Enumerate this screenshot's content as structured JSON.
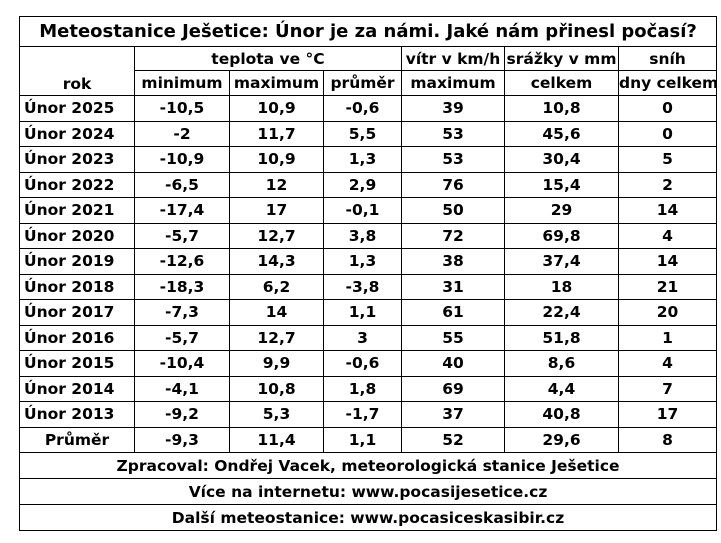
{
  "title": "Meteostanice Ješetice: Únor je za námi. Jaké nám přinesl počasí?",
  "header": {
    "rok_label": "rok",
    "teplota_group": "teplota ve °C",
    "vitr_group": "vítr v km/h",
    "srazky_group": "srážky v mm",
    "snih_group": "sníh",
    "col_minimum": "minimum",
    "col_maximum": "maximum",
    "col_prumer": "průměr",
    "col_vitr_maximum": "maximum",
    "col_srazky_celkem": "celkem",
    "col_snih_dny": "dny celkem"
  },
  "rows": [
    {
      "rok": "Únor 2025",
      "min": "-10,5",
      "max": "10,9",
      "avg": "-0,6",
      "vitr": "39",
      "srazky": "10,8",
      "snih": "0"
    },
    {
      "rok": "Únor 2024",
      "min": "-2",
      "max": "11,7",
      "avg": "5,5",
      "vitr": "53",
      "srazky": "45,6",
      "snih": "0"
    },
    {
      "rok": "Únor 2023",
      "min": "-10,9",
      "max": "10,9",
      "avg": "1,3",
      "vitr": "53",
      "srazky": "30,4",
      "snih": "5"
    },
    {
      "rok": "Únor 2022",
      "min": "-6,5",
      "max": "12",
      "avg": "2,9",
      "vitr": "76",
      "srazky": "15,4",
      "snih": "2"
    },
    {
      "rok": "Únor 2021",
      "min": "-17,4",
      "max": "17",
      "avg": "-0,1",
      "vitr": "50",
      "srazky": "29",
      "snih": "14"
    },
    {
      "rok": "Únor 2020",
      "min": "-5,7",
      "max": "12,7",
      "avg": "3,8",
      "vitr": "72",
      "srazky": "69,8",
      "snih": "4"
    },
    {
      "rok": "Únor 2019",
      "min": "-12,6",
      "max": "14,3",
      "avg": "1,3",
      "vitr": "38",
      "srazky": "37,4",
      "snih": "14"
    },
    {
      "rok": "Únor 2018",
      "min": "-18,3",
      "max": "6,2",
      "avg": "-3,8",
      "vitr": "31",
      "srazky": "18",
      "snih": "21"
    },
    {
      "rok": "Únor 2017",
      "min": "-7,3",
      "max": "14",
      "avg": "1,1",
      "vitr": "61",
      "srazky": "22,4",
      "snih": "20"
    },
    {
      "rok": "Únor 2016",
      "min": "-5,7",
      "max": "12,7",
      "avg": "3",
      "vitr": "55",
      "srazky": "51,8",
      "snih": "1"
    },
    {
      "rok": "Únor 2015",
      "min": "-10,4",
      "max": "9,9",
      "avg": "-0,6",
      "vitr": "40",
      "srazky": "8,6",
      "snih": "4"
    },
    {
      "rok": "Únor 2014",
      "min": "-4,1",
      "max": "10,8",
      "avg": "1,8",
      "vitr": "69",
      "srazky": "4,4",
      "snih": "7"
    },
    {
      "rok": "Únor 2013",
      "min": "-9,2",
      "max": "5,3",
      "avg": "-1,7",
      "vitr": "37",
      "srazky": "40,8",
      "snih": "17"
    }
  ],
  "average": {
    "rok": "Průměr",
    "min": "-9,3",
    "max": "11,4",
    "avg": "1,1",
    "vitr": "52",
    "srazky": "29,6",
    "snih": "8"
  },
  "footer": {
    "zpracoval": "Zpracoval: Ondřej Vacek, meteorologická stanice Ješetice",
    "internet": "Více na internetu: www.pocasijesetice.cz",
    "dalsi": "Další meteostanice: www.pocasiceskasibir.cz"
  }
}
